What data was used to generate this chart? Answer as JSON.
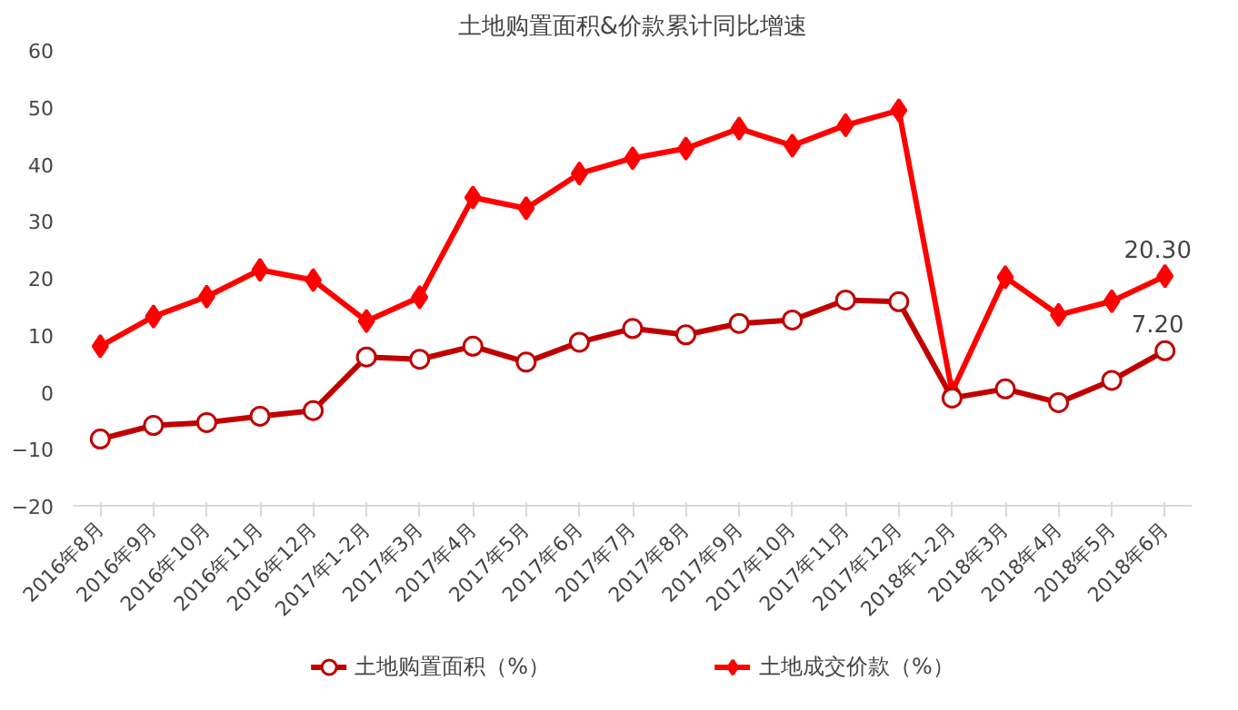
{
  "chart_data": {
    "type": "line",
    "title": "土地购置面积&价款累计同比增速",
    "categories": [
      "2016年8月",
      "2016年9月",
      "2016年10月",
      "2016年11月",
      "2016年12月",
      "2017年1-2月",
      "2017年3月",
      "2017年4月",
      "2017年5月",
      "2017年6月",
      "2017年7月",
      "2017年8月",
      "2017年9月",
      "2017年10月",
      "2017年11月",
      "2017年12月",
      "2018年1-2月",
      "2018年3月",
      "2018年4月",
      "2018年5月",
      "2018年6月"
    ],
    "series": [
      {
        "name": "土地购置面积（%）",
        "color": "#c00000",
        "marker": "circle",
        "values": [
          -8.3,
          -5.9,
          -5.4,
          -4.3,
          -3.3,
          6.1,
          5.7,
          8.0,
          5.2,
          8.7,
          11.1,
          10.0,
          12.0,
          12.6,
          16.1,
          15.8,
          -1.1,
          0.5,
          -1.9,
          2.0,
          7.2
        ],
        "value_labels": [
          null,
          null,
          null,
          null,
          null,
          null,
          null,
          null,
          null,
          null,
          null,
          null,
          null,
          null,
          null,
          null,
          null,
          null,
          null,
          null,
          "7.20"
        ]
      },
      {
        "name": "土地成交价款（%）",
        "color": "#ff0000",
        "marker": "diamond",
        "values": [
          8.0,
          13.2,
          16.7,
          21.4,
          19.6,
          12.4,
          16.6,
          34.1,
          32.2,
          38.3,
          41.0,
          42.7,
          46.2,
          43.2,
          46.8,
          49.4,
          0.0,
          20.1,
          13.5,
          15.9,
          20.3
        ],
        "value_labels": [
          null,
          null,
          null,
          null,
          null,
          null,
          null,
          null,
          null,
          null,
          null,
          null,
          null,
          null,
          null,
          null,
          null,
          null,
          null,
          null,
          "20.30"
        ]
      }
    ],
    "ylim": [
      -20,
      60
    ],
    "yticks": [
      -20,
      -10,
      0,
      10,
      20,
      30,
      40,
      50,
      60
    ],
    "grid": false,
    "legend": "bottom"
  }
}
